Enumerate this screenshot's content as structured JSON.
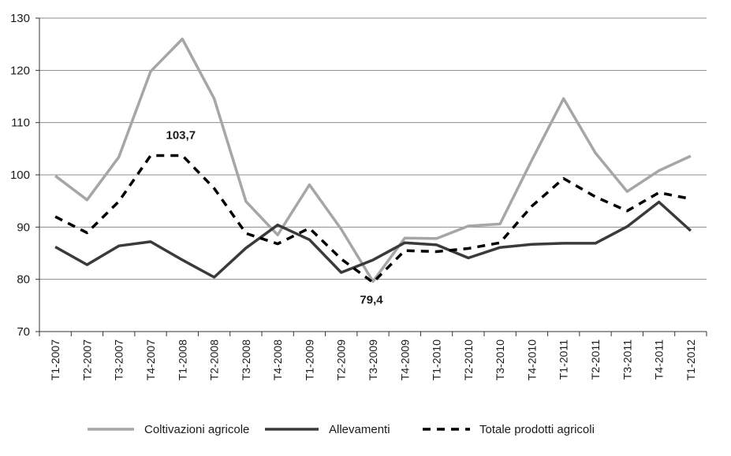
{
  "chart_data": {
    "type": "line",
    "title": "",
    "xlabel": "",
    "ylabel": "",
    "ylim": [
      70,
      130
    ],
    "yticks": [
      70,
      80,
      90,
      100,
      110,
      120,
      130
    ],
    "grid": "horizontal",
    "legend_position": "bottom",
    "categories": [
      "T1-2007",
      "T2-2007",
      "T3-2007",
      "T4-2007",
      "T1-2008",
      "T2-2008",
      "T3-2008",
      "T4-2008",
      "T1-2009",
      "T2-2009",
      "T3-2009",
      "T4-2009",
      "T1-2010",
      "T2-2010",
      "T3-2010",
      "T4-2010",
      "T1-2011",
      "T2-2011",
      "T3-2011",
      "T4-2011",
      "T1-2012"
    ],
    "series": [
      {
        "name": "Coltivazioni agricole",
        "color": "#a6a6a6",
        "dash": "solid",
        "values": [
          99.8,
          95.2,
          103.4,
          119.8,
          126.0,
          114.6,
          94.9,
          88.5,
          98.1,
          89.6,
          79.6,
          87.9,
          87.8,
          90.2,
          90.6,
          102.8,
          114.6,
          104.2,
          96.8,
          100.8,
          103.6
        ]
      },
      {
        "name": "Allevamenti",
        "color": "#3a3a3a",
        "dash": "solid",
        "values": [
          86.2,
          82.8,
          86.4,
          87.2,
          83.7,
          80.4,
          86.0,
          90.4,
          87.6,
          81.3,
          83.7,
          87.0,
          86.6,
          84.1,
          86.1,
          86.7,
          86.9,
          86.9,
          90.1,
          94.8,
          89.3
        ]
      },
      {
        "name": "Totale prodotti agricoli",
        "color": "#000000",
        "dash": "dashed",
        "values": [
          92.0,
          88.9,
          94.9,
          103.7,
          103.7,
          97.4,
          88.8,
          86.8,
          89.8,
          83.9,
          79.4,
          85.5,
          85.3,
          85.9,
          87.0,
          94.0,
          99.3,
          95.8,
          93.1,
          96.6,
          95.4
        ]
      }
    ],
    "annotations": [
      {
        "text": "103,7",
        "series": 2,
        "index": 4,
        "position": "above"
      },
      {
        "text": "79,4",
        "series": 2,
        "index": 10,
        "position": "below"
      }
    ]
  }
}
